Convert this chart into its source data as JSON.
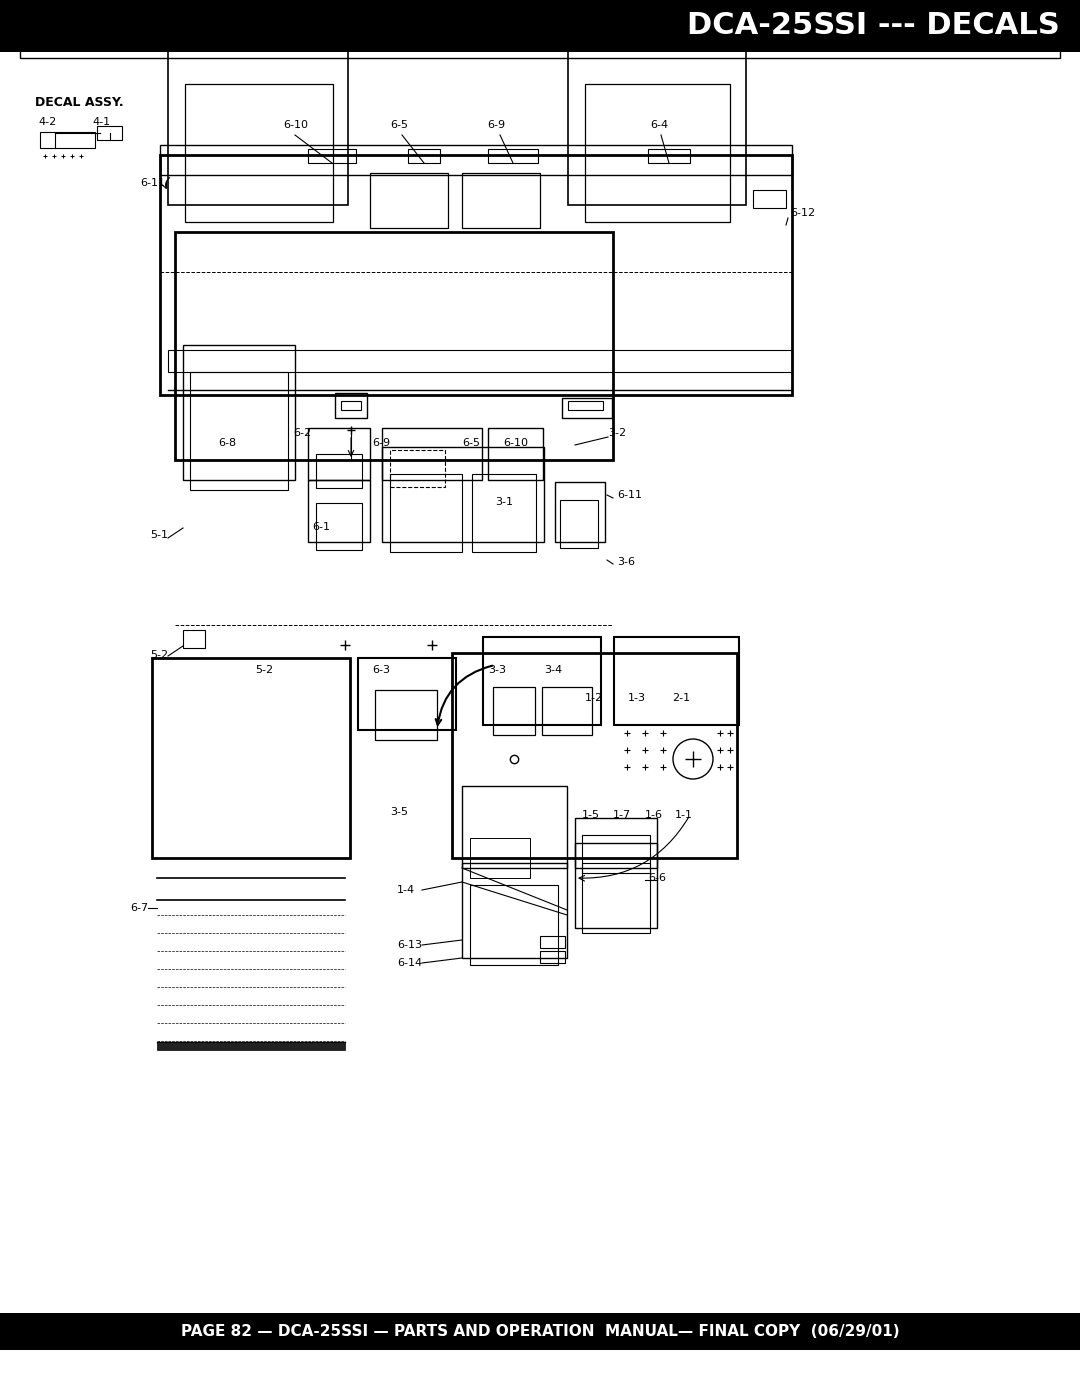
{
  "title": "DCA-25SSI --- DECALS",
  "footer": "PAGE 82 — DCA-25SSI — PARTS AND OPERATION  MANUAL— FINAL COPY  (06/29/01)",
  "header_bg": "#000000",
  "header_text_color": "#ffffff",
  "footer_bg": "#000000",
  "footer_text_color": "#ffffff",
  "page_bg": "#ffffff",
  "body_text_color": "#000000",
  "title_fontsize": 22,
  "footer_fontsize": 11,
  "decal_assy_label": "DECAL ASSY.",
  "fig_width": 10.8,
  "fig_height": 13.97
}
